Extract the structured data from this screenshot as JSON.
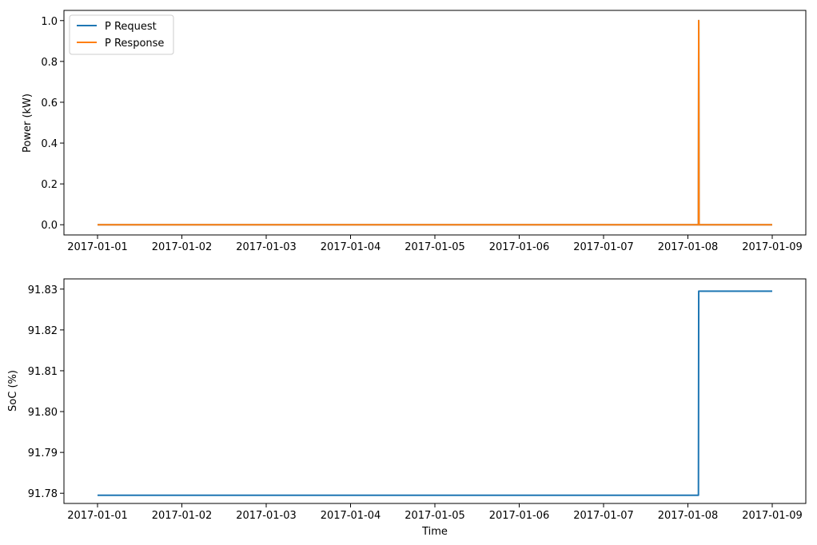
{
  "chart_data": [
    {
      "type": "line",
      "title": "",
      "xlabel": "",
      "ylabel": "Power (kW)",
      "xlim": [
        "2017-01-01",
        "2017-01-09"
      ],
      "ylim": [
        -0.05,
        1.05
      ],
      "x_ticks": [
        "2017-01-01",
        "2017-01-02",
        "2017-01-03",
        "2017-01-04",
        "2017-01-05",
        "2017-01-06",
        "2017-01-07",
        "2017-01-08",
        "2017-01-09"
      ],
      "y_ticks": [
        "0.0",
        "0.2",
        "0.4",
        "0.6",
        "0.8",
        "1.0"
      ],
      "grid": false,
      "legend": "upper-left",
      "series": [
        {
          "name": "P Request",
          "color": "#1f77b4",
          "points": [
            [
              "2017-01-01 00:00",
              0.0
            ],
            [
              "2017-01-08 03:00",
              0.0
            ],
            [
              "2017-01-08 03:05",
              1.0
            ],
            [
              "2017-01-08 03:10",
              0.0
            ],
            [
              "2017-01-09 00:00",
              0.0
            ]
          ]
        },
        {
          "name": "P Response",
          "color": "#ff7f0e",
          "points": [
            [
              "2017-01-01 00:00",
              0.0
            ],
            [
              "2017-01-08 03:00",
              0.0
            ],
            [
              "2017-01-08 03:05",
              1.0
            ],
            [
              "2017-01-08 03:10",
              0.0
            ],
            [
              "2017-01-09 00:00",
              0.0
            ]
          ]
        }
      ]
    },
    {
      "type": "line",
      "title": "",
      "xlabel": "Time",
      "ylabel": "SoC (%)",
      "xlim": [
        "2017-01-01",
        "2017-01-09"
      ],
      "ylim": [
        91.7775,
        91.8325
      ],
      "x_ticks": [
        "2017-01-01",
        "2017-01-02",
        "2017-01-03",
        "2017-01-04",
        "2017-01-05",
        "2017-01-06",
        "2017-01-07",
        "2017-01-08",
        "2017-01-09"
      ],
      "y_ticks": [
        "91.78",
        "91.79",
        "91.80",
        "91.81",
        "91.82",
        "91.83"
      ],
      "grid": false,
      "legend": "none",
      "series": [
        {
          "name": "",
          "color": "#1f77b4",
          "points": [
            [
              "2017-01-01 00:00",
              91.7795
            ],
            [
              "2017-01-08 03:00",
              91.7795
            ],
            [
              "2017-01-08 03:05",
              91.8295
            ],
            [
              "2017-01-09 00:00",
              91.8295
            ]
          ]
        }
      ]
    }
  ]
}
